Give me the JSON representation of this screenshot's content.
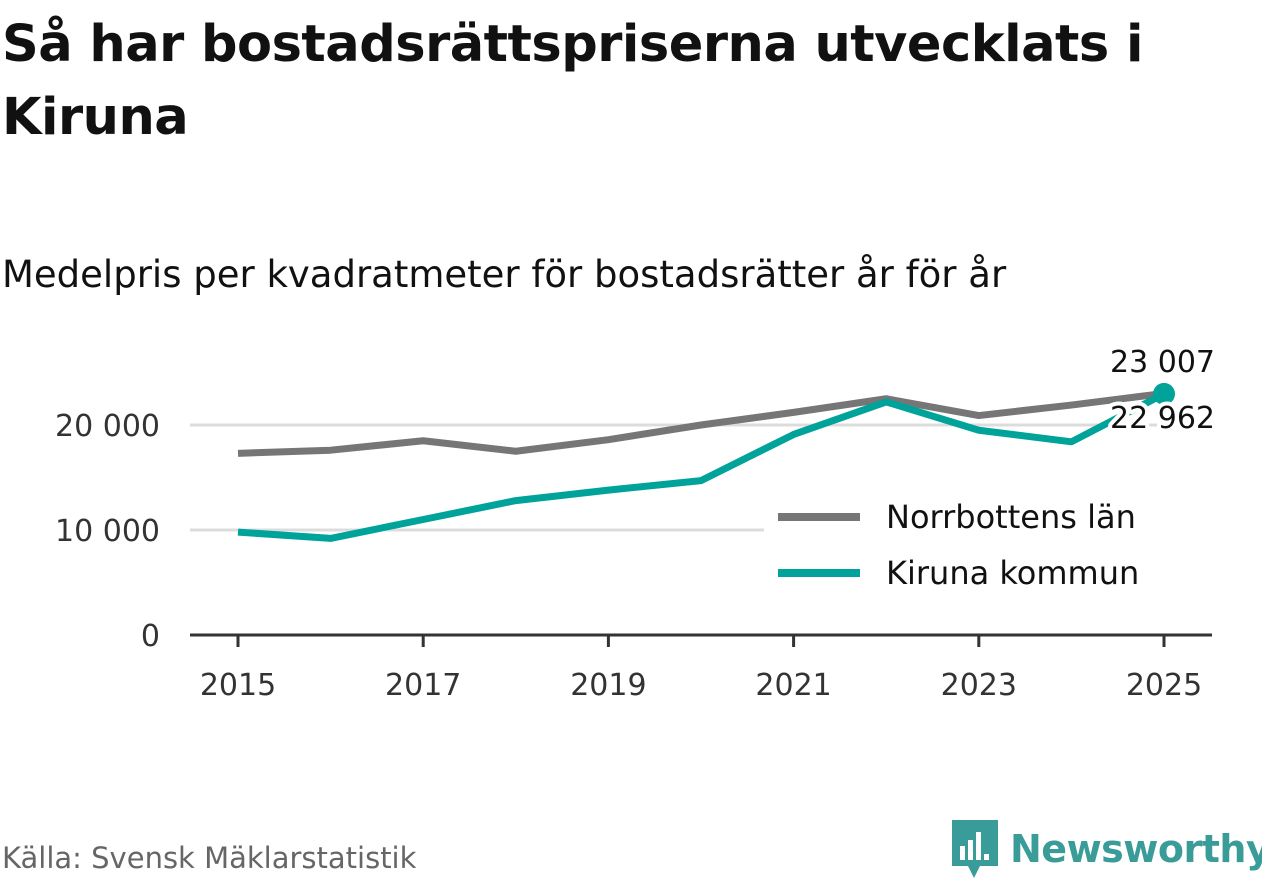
{
  "title": "Så har bostadsrättspriserna utvecklats i Kiruna",
  "subtitle": "Medelpris per kvadratmeter för bostadsrätter år för år",
  "source": "Källa: Svensk Mäklarstatistik",
  "brand": "Newsworthy",
  "colors": {
    "norrbotten": "#767676",
    "kiruna": "#00a39a",
    "grid": "#dcdcdc",
    "axis": "#333333",
    "brand": "#3a9c99"
  },
  "chart_data": {
    "type": "line",
    "title": "Så har bostadsrättspriserna utvecklats i Kiruna",
    "subtitle": "Medelpris per kvadratmeter för bostadsrätter år för år",
    "xlabel": "",
    "ylabel": "",
    "x": [
      2015,
      2016,
      2017,
      2018,
      2019,
      2020,
      2021,
      2022,
      2023,
      2024,
      2025
    ],
    "x_ticks": [
      "2015",
      "2017",
      "2019",
      "2021",
      "2023",
      "2025"
    ],
    "y_ticks": [
      "0",
      "10 000",
      "20 000"
    ],
    "ylim": [
      0,
      24000
    ],
    "grid": true,
    "legend_position": "bottom-right",
    "series": [
      {
        "name": "Norrbottens län",
        "color_key": "norrbotten",
        "values": [
          17300,
          17600,
          18500,
          17500,
          18600,
          20000,
          21200,
          22500,
          20900,
          21900,
          23007
        ],
        "end_label": "23 007"
      },
      {
        "name": "Kiruna kommun",
        "color_key": "kiruna",
        "values": [
          9800,
          9200,
          11000,
          12800,
          13800,
          14700,
          19100,
          22200,
          19500,
          18400,
          22962
        ],
        "end_label": "22 962"
      }
    ]
  }
}
